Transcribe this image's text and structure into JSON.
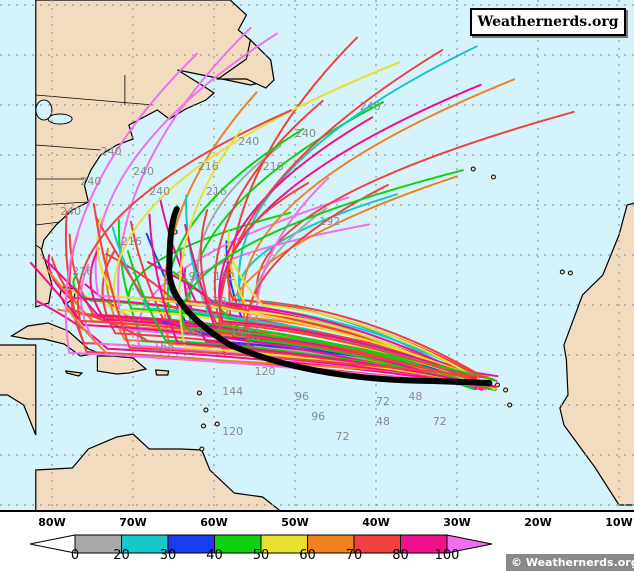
{
  "brand": "Weathernerds.org",
  "copyright": "© Weathernerds.org",
  "colors": {
    "ocean": "#d4f3fb",
    "land": "#f2dcc0",
    "mean_track": "#000000"
  },
  "map": {
    "type": "hurricane ensemble track (spaghetti) map",
    "longitude_labels": [
      "80W",
      "70W",
      "60W",
      "50W",
      "40W",
      "30W",
      "20W",
      "10W"
    ],
    "forecast_hour_labels": [
      "240",
      "240",
      "240",
      "240",
      "216",
      "216",
      "216",
      "240",
      "240",
      "240",
      "216",
      "192",
      "192",
      "168",
      "168",
      "144",
      "120",
      "96",
      "72",
      "72",
      "48",
      "240",
      "216",
      "192",
      "168",
      "144",
      "120",
      "96",
      "72",
      "48"
    ]
  },
  "colorbar": {
    "labels": [
      "0",
      "20",
      "30",
      "40",
      "50",
      "60",
      "70",
      "80",
      "100"
    ],
    "colors": [
      "#ffffff",
      "#a8a8a8",
      "#18c8c8",
      "#1a3cf0",
      "#10d010",
      "#e8e030",
      "#f08020",
      "#f04040",
      "#f0108c",
      "#f070f0"
    ]
  }
}
